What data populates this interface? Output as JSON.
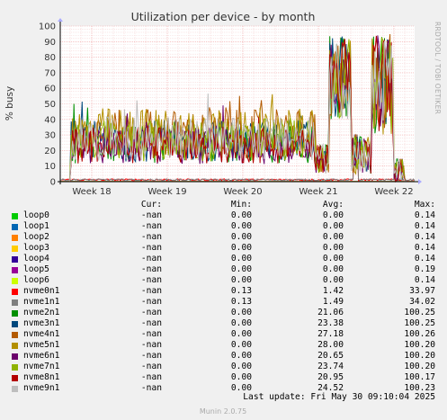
{
  "chart_data": {
    "type": "line",
    "title": "Utilization per device - by month",
    "ylabel": "% busy",
    "ylim": [
      0,
      100
    ],
    "yticks": [
      0,
      10,
      20,
      30,
      40,
      50,
      60,
      70,
      80,
      90,
      100
    ],
    "x_ticks": [
      "Week 18",
      "Week 19",
      "Week 20",
      "Week 21",
      "Week 22"
    ],
    "side_label": "RRDTOOL / TOBI OETIKER",
    "series": [
      {
        "name": "loop0",
        "color": "#00cc00",
        "cur": "-nan",
        "min": "0.00",
        "avg": "0.00",
        "max": "0.14"
      },
      {
        "name": "loop1",
        "color": "#0066b3",
        "cur": "-nan",
        "min": "0.00",
        "avg": "0.00",
        "max": "0.14"
      },
      {
        "name": "loop2",
        "color": "#ff8000",
        "cur": "-nan",
        "min": "0.00",
        "avg": "0.00",
        "max": "0.14"
      },
      {
        "name": "loop3",
        "color": "#ffcc00",
        "cur": "-nan",
        "min": "0.00",
        "avg": "0.00",
        "max": "0.14"
      },
      {
        "name": "loop4",
        "color": "#330099",
        "cur": "-nan",
        "min": "0.00",
        "avg": "0.00",
        "max": "0.14"
      },
      {
        "name": "loop5",
        "color": "#990099",
        "cur": "-nan",
        "min": "0.00",
        "avg": "0.00",
        "max": "0.19"
      },
      {
        "name": "loop6",
        "color": "#ccff00",
        "cur": "-nan",
        "min": "0.00",
        "avg": "0.00",
        "max": "0.14"
      },
      {
        "name": "nvme0n1",
        "color": "#ff0000",
        "cur": "-nan",
        "min": "0.13",
        "avg": "1.42",
        "max": "33.97"
      },
      {
        "name": "nvme1n1",
        "color": "#808080",
        "cur": "-nan",
        "min": "0.13",
        "avg": "1.49",
        "max": "34.02"
      },
      {
        "name": "nvme2n1",
        "color": "#008f00",
        "cur": "-nan",
        "min": "0.00",
        "avg": "21.06",
        "max": "100.25"
      },
      {
        "name": "nvme3n1",
        "color": "#00487d",
        "cur": "-nan",
        "min": "0.00",
        "avg": "23.38",
        "max": "100.25"
      },
      {
        "name": "nvme4n1",
        "color": "#b35a00",
        "cur": "-nan",
        "min": "0.00",
        "avg": "27.18",
        "max": "100.26"
      },
      {
        "name": "nvme5n1",
        "color": "#b38f00",
        "cur": "-nan",
        "min": "0.00",
        "avg": "28.00",
        "max": "100.20"
      },
      {
        "name": "nvme6n1",
        "color": "#6b006b",
        "cur": "-nan",
        "min": "0.00",
        "avg": "20.65",
        "max": "100.20"
      },
      {
        "name": "nvme7n1",
        "color": "#8fb300",
        "cur": "-nan",
        "min": "0.00",
        "avg": "23.74",
        "max": "100.20"
      },
      {
        "name": "nvme8n1",
        "color": "#b30000",
        "cur": "-nan",
        "min": "0.00",
        "avg": "20.95",
        "max": "100.17"
      },
      {
        "name": "nvme9n1",
        "color": "#bebebe",
        "cur": "-nan",
        "min": "0.00",
        "avg": "24.52",
        "max": "100.23"
      }
    ],
    "grid": true
  },
  "legend_header": {
    "cur": "Cur:",
    "min": "Min:",
    "avg": "Avg:",
    "max": "Max:"
  },
  "last_update": "Last update:  Fri May 30 09:10:04 2025",
  "footer": "Munin 2.0.75"
}
